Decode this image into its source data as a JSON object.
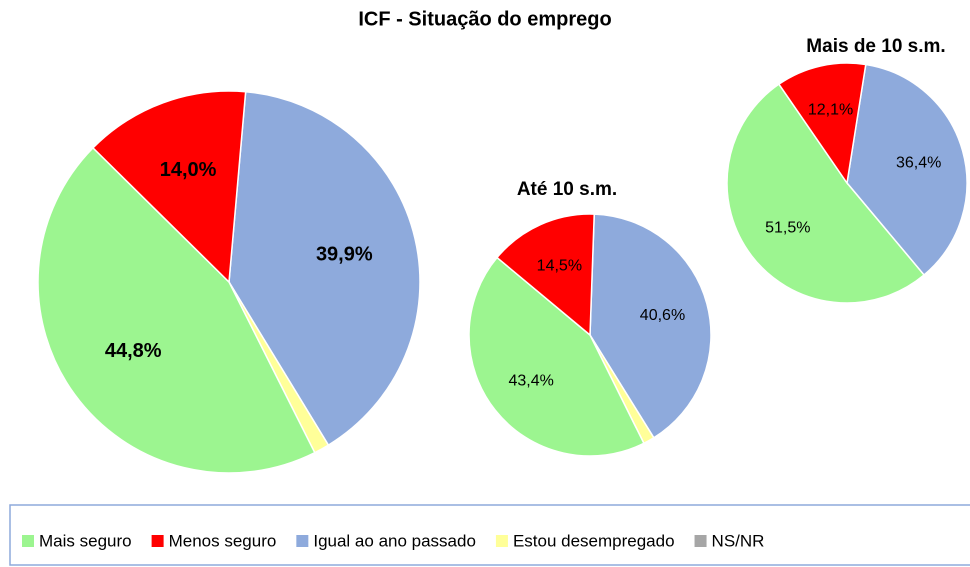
{
  "chart_data": [
    {
      "type": "pie",
      "title": "ICF - Situação do emprego",
      "categories": [
        "Mais seguro",
        "Menos seguro",
        "Igual ao ano passado",
        "Estou desempregado",
        "NS/NR"
      ],
      "colors": [
        "#9cf590",
        "#ff0000",
        "#8eaadc",
        "#ffff99",
        "#a6a6a6"
      ],
      "values": [
        44.8,
        14.0,
        39.9,
        1.3,
        0
      ],
      "value_labels": [
        "44,8%",
        "14,0%",
        "39,9%",
        null,
        null
      ]
    },
    {
      "type": "pie",
      "title": "Até 10 s.m.",
      "categories": [
        "Mais seguro",
        "Menos seguro",
        "Igual ao ano passado",
        "Estou desempregado",
        "NS/NR"
      ],
      "colors": [
        "#9cf590",
        "#ff0000",
        "#8eaadc",
        "#ffff99",
        "#a6a6a6"
      ],
      "values": [
        43.4,
        14.5,
        40.6,
        1.5,
        0
      ],
      "value_labels": [
        "43,4%",
        "14,5%",
        "40,6%",
        null,
        null
      ]
    },
    {
      "type": "pie",
      "title": "Mais de 10 s.m.",
      "categories": [
        "Mais seguro",
        "Menos seguro",
        "Igual ao ano passado",
        "Estou desempregado",
        "NS/NR"
      ],
      "colors": [
        "#9cf590",
        "#ff0000",
        "#8eaadc",
        "#ffff99",
        "#a6a6a6"
      ],
      "values": [
        51.5,
        12.1,
        36.4,
        0,
        0
      ],
      "value_labels": [
        "51,5%",
        "12,1%",
        "36,4%",
        null,
        null
      ]
    }
  ]
}
